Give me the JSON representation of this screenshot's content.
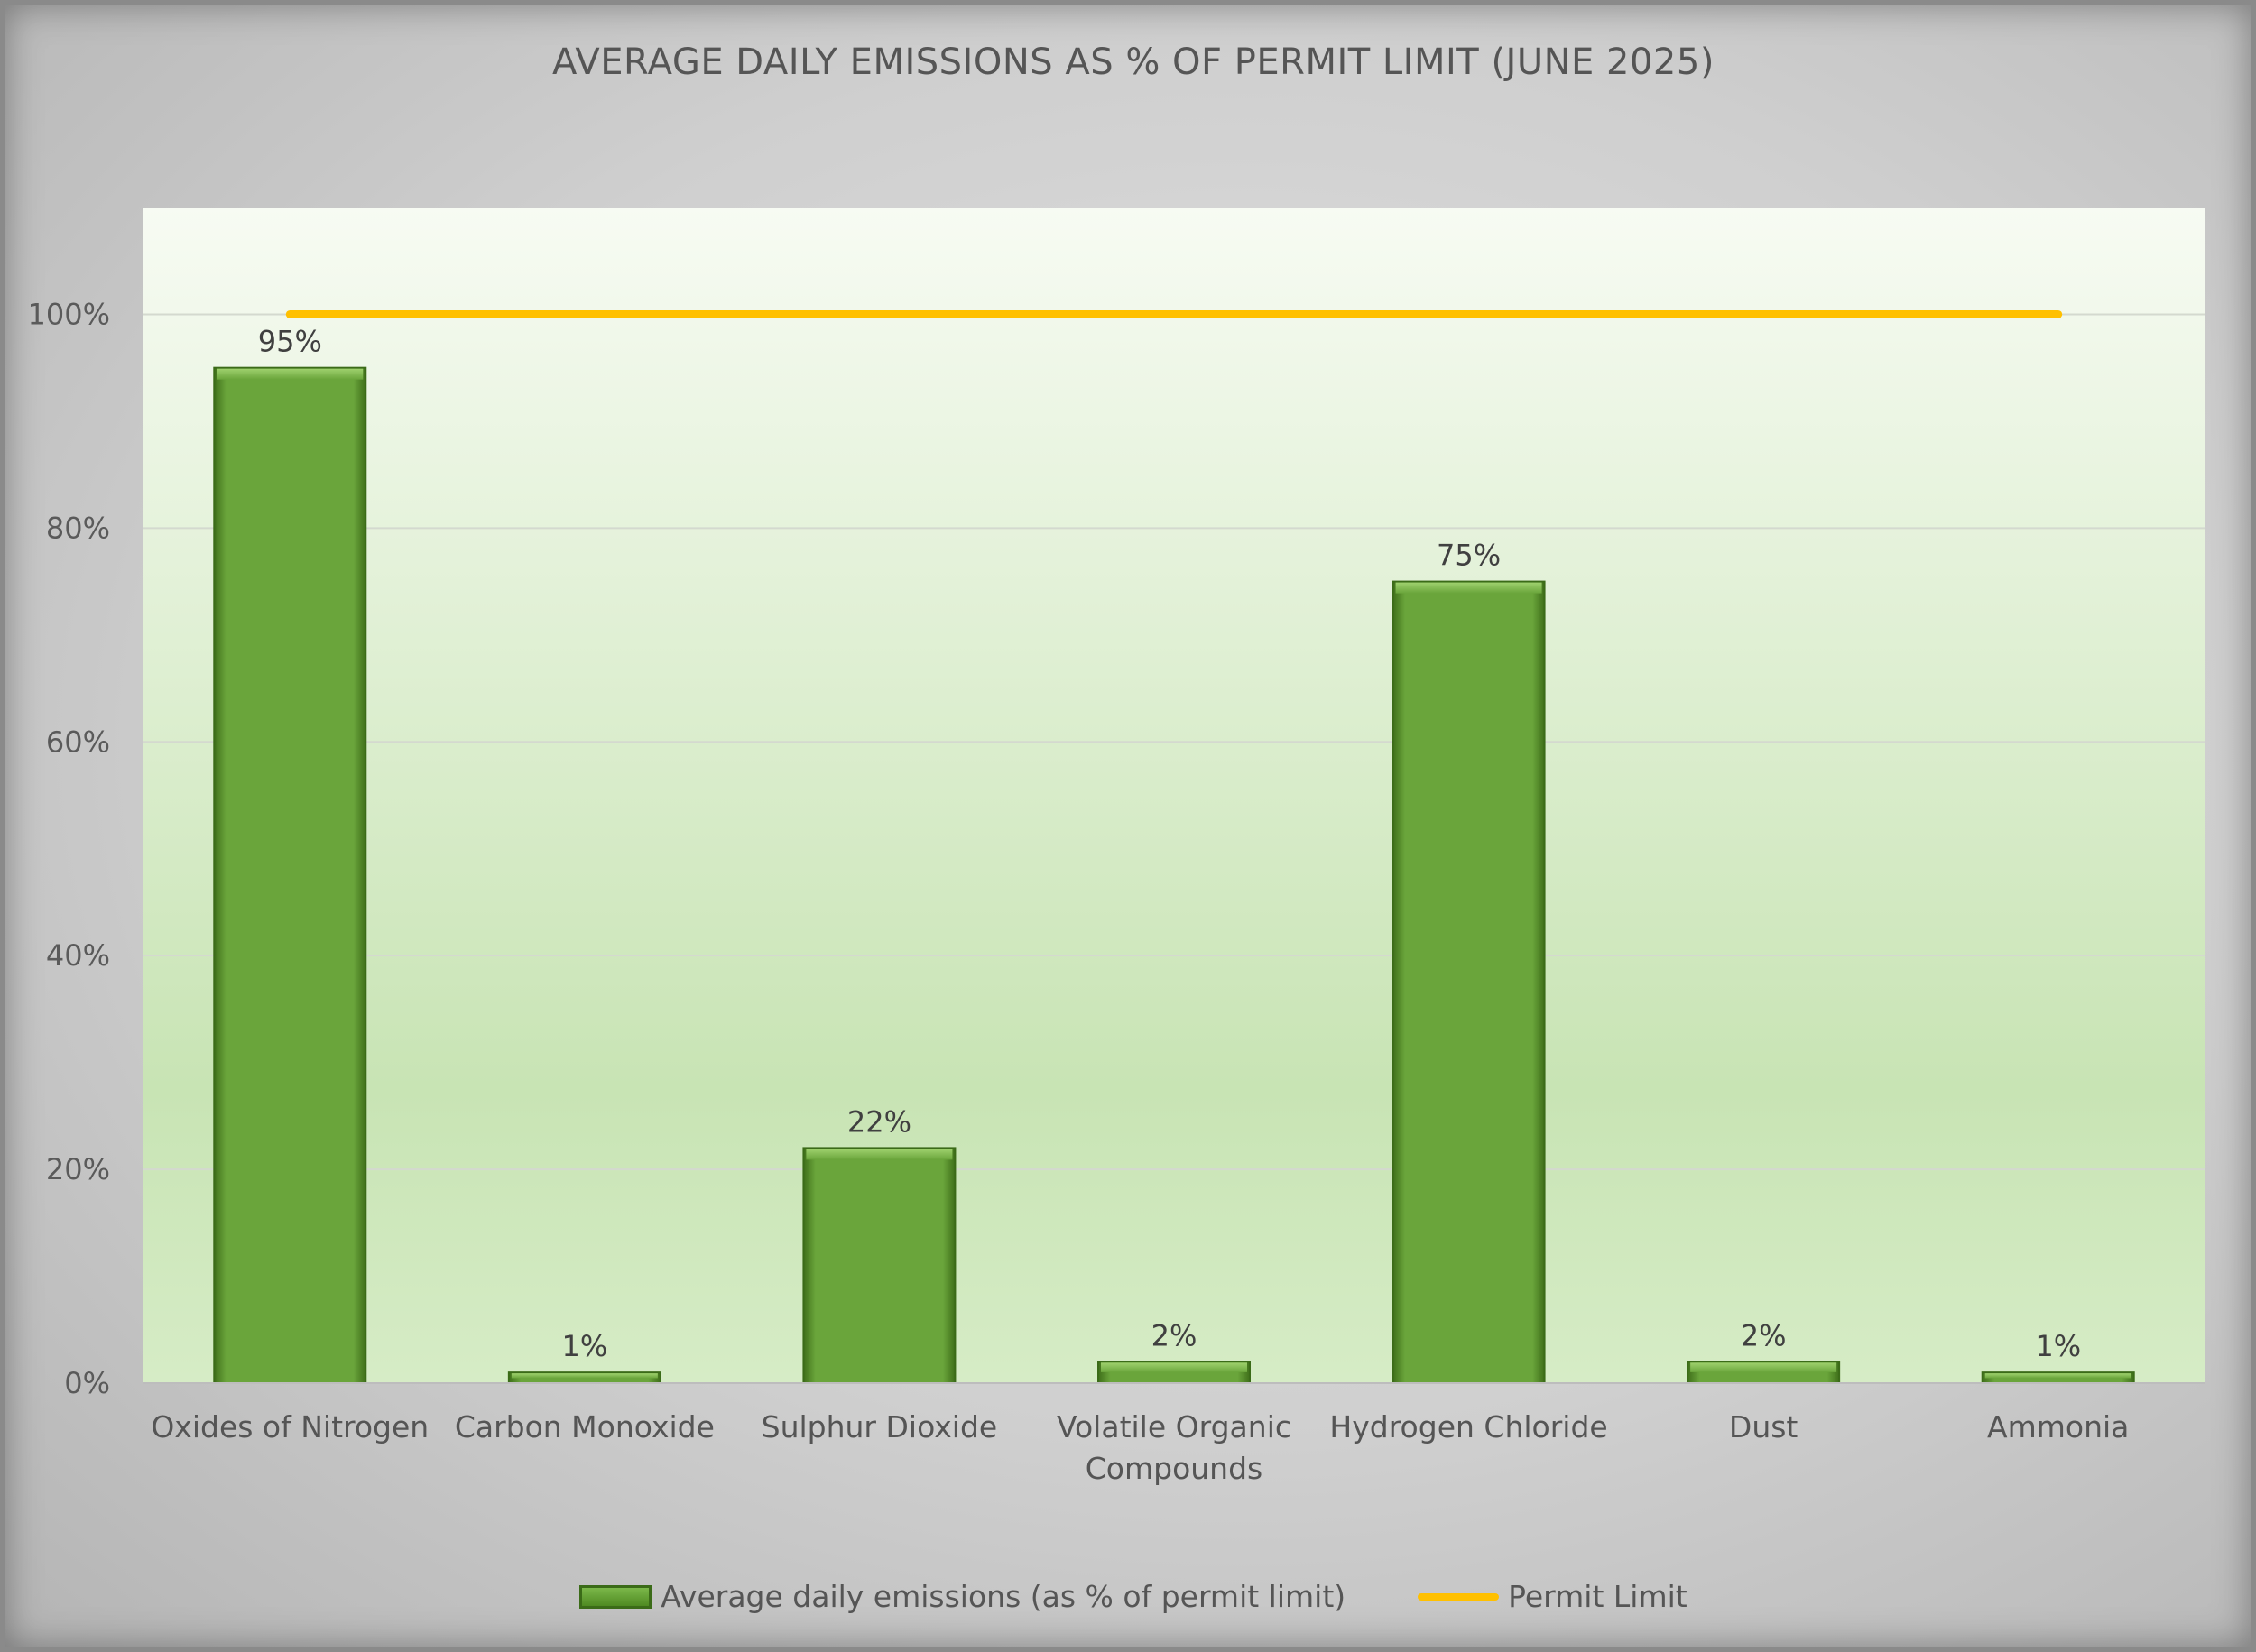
{
  "chart_data": {
    "type": "bar",
    "title": "AVERAGE DAILY EMISSIONS AS % OF PERMIT LIMIT (JUNE 2025)",
    "categories": [
      [
        "Oxides of Nitrogen"
      ],
      [
        "Carbon Monoxide"
      ],
      [
        "Sulphur Dioxide"
      ],
      [
        "Volatile Organic",
        "Compounds"
      ],
      [
        "Hydrogen Chloride"
      ],
      [
        "Dust"
      ],
      [
        "Ammonia"
      ]
    ],
    "series": [
      {
        "name": "Average daily emissions (as % of permit limit)",
        "values": [
          95,
          1,
          22,
          2,
          75,
          2,
          1
        ],
        "labels": [
          "95%",
          "1%",
          "22%",
          "2%",
          "75%",
          "2%",
          "1%"
        ],
        "color": "#67a038"
      },
      {
        "name": "Permit Limit",
        "type": "line",
        "values": [
          100,
          100,
          100,
          100,
          100,
          100,
          100
        ],
        "color": "#ffc000"
      }
    ],
    "ylim": [
      0,
      110
    ],
    "yticks": [
      0,
      20,
      40,
      60,
      80,
      100
    ],
    "ytick_labels": [
      "0%",
      "20%",
      "40%",
      "60%",
      "80%",
      "100%"
    ],
    "grid": true,
    "legend_position": "bottom"
  }
}
